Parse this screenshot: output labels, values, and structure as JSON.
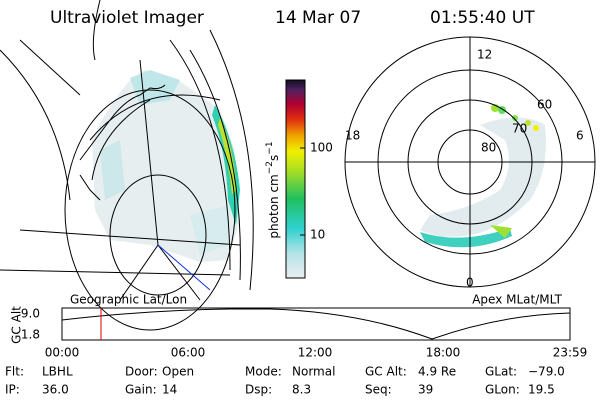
{
  "header": {
    "title": "Ultraviolet Imager",
    "date": "14 Mar 07",
    "time": "01:55:40 UT"
  },
  "colorbar": {
    "label": {
      "text": "photon cm",
      "exp1": "−2",
      "unit2": "s",
      "exp2": "−1"
    },
    "ticks": [
      "100",
      "10"
    ]
  },
  "polar_plot": {
    "mlt_labels": [
      "12",
      "18",
      "6",
      "0"
    ],
    "mlat_labels": [
      "60",
      "70",
      "80"
    ]
  },
  "timeline": {
    "left_label": "Geographic Lat/Lon",
    "right_label": "Apex MLat/MLT",
    "axis_title": "GC Alt",
    "y_labels": [
      "9.0",
      "1.8"
    ],
    "x_labels": [
      "00:00",
      "06:00",
      "12:00",
      "18:00",
      "23:59"
    ]
  },
  "footer": {
    "rows": [
      [
        {
          "label": "Flt:",
          "value": "LBHL"
        },
        {
          "label": "Door:",
          "value": "Open"
        },
        {
          "label": "Mode:",
          "value": "Normal"
        },
        {
          "label": "GC Alt:",
          "value": "4.9 Re"
        },
        {
          "label": "GLat:",
          "value": "−79.0"
        }
      ],
      [
        {
          "label": "IP:",
          "value": "36.0"
        },
        {
          "label": "Gain:",
          "value": "14"
        },
        {
          "label": "Dsp:",
          "value": "8.3"
        },
        {
          "label": "Seq:",
          "value": "39"
        },
        {
          "label": "GLon:",
          "value": "19.5"
        }
      ]
    ]
  }
}
